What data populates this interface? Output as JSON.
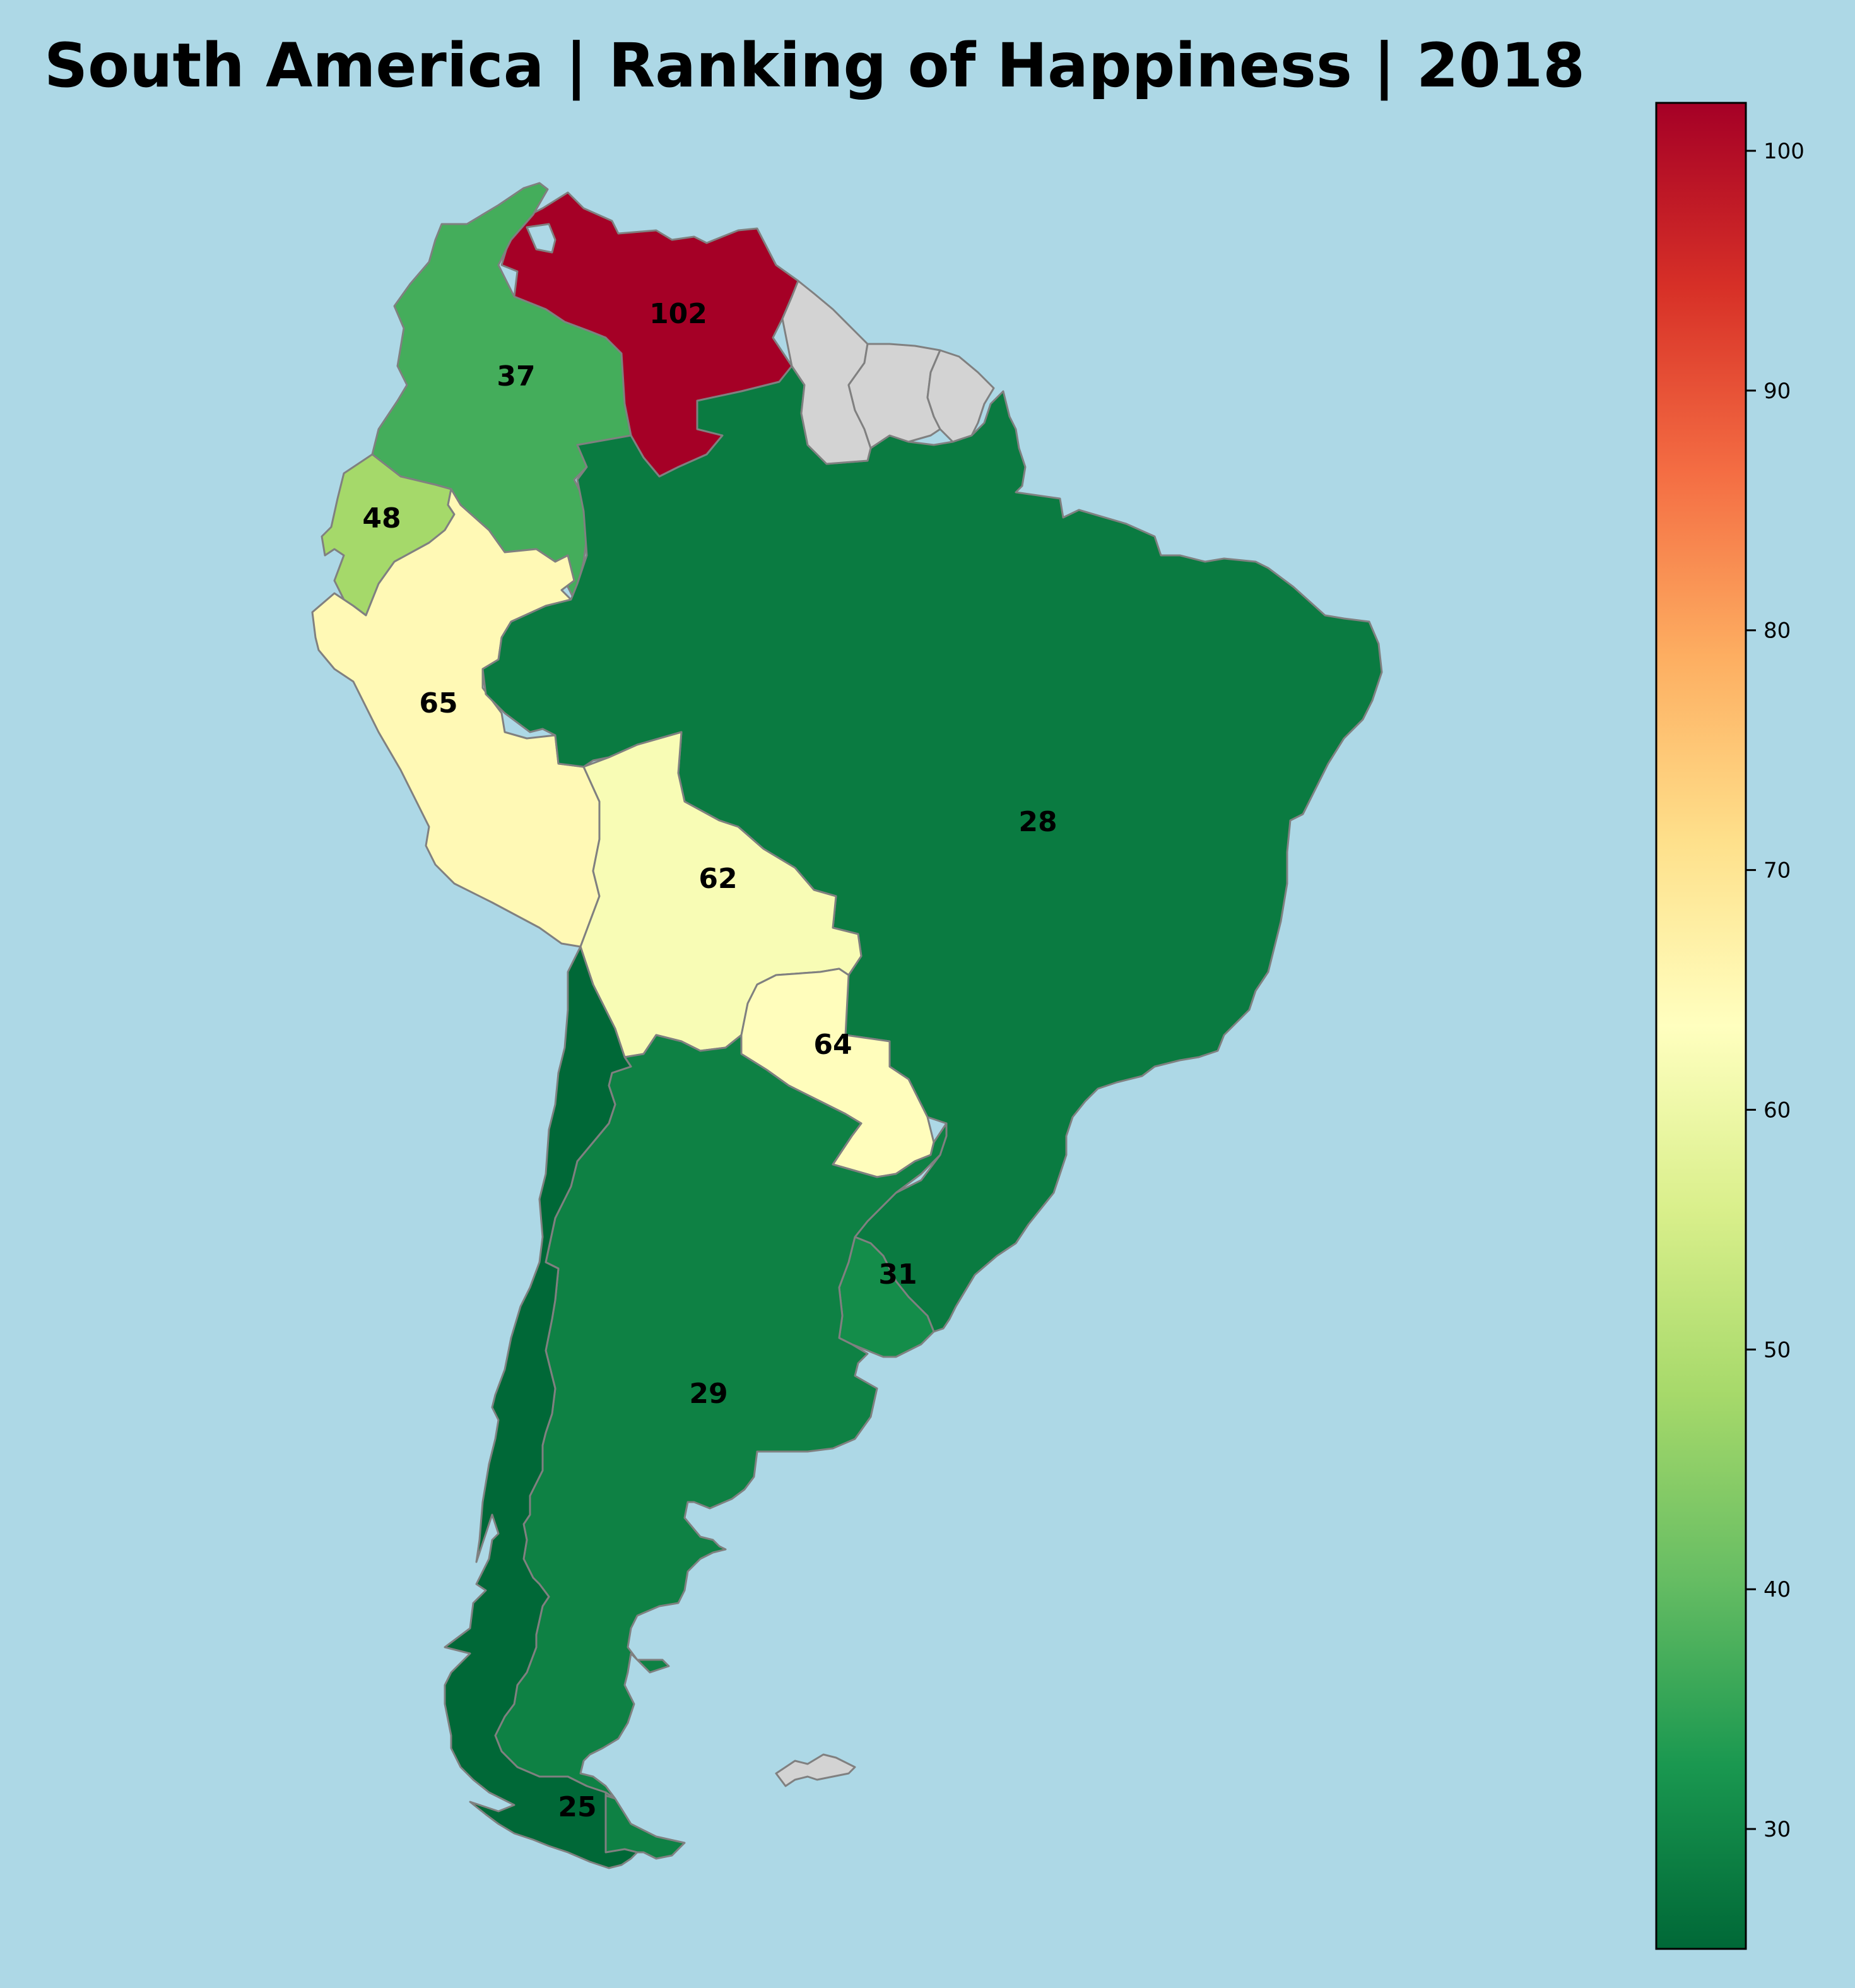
{
  "title": "South America | Ranking of Happiness | 2018",
  "colormap": {
    "name": "RdYlGn_r",
    "min": 25,
    "max": 102,
    "ticks": [
      30,
      40,
      50,
      60,
      70,
      80,
      90,
      100
    ],
    "tick_labels": [
      "30",
      "40",
      "50",
      "60",
      "70",
      "80",
      "90",
      "100"
    ],
    "stops": [
      "#006837",
      "#1a9850",
      "#66bd63",
      "#a6d96a",
      "#d9ef8b",
      "#ffffbf",
      "#fee08b",
      "#fdae61",
      "#f46d43",
      "#d73027",
      "#a50026"
    ],
    "no_data_color": "#d3d3d3",
    "border_color": "#808080",
    "background": "#add8e6"
  },
  "countries": {
    "venezuela": {
      "rank": 102,
      "label": "102"
    },
    "colombia": {
      "rank": 37,
      "label": "37"
    },
    "ecuador": {
      "rank": 48,
      "label": "48"
    },
    "peru": {
      "rank": 65,
      "label": "65"
    },
    "brazil": {
      "rank": 28,
      "label": "28"
    },
    "bolivia": {
      "rank": 62,
      "label": "62"
    },
    "paraguay": {
      "rank": 64,
      "label": "64"
    },
    "uruguay": {
      "rank": 31,
      "label": "31"
    },
    "argentina": {
      "rank": 29,
      "label": "29"
    },
    "chile": {
      "rank": 25,
      "label": "25"
    }
  },
  "no_data_regions": [
    "guyana",
    "suriname",
    "french-guiana",
    "falkland-islands"
  ]
}
